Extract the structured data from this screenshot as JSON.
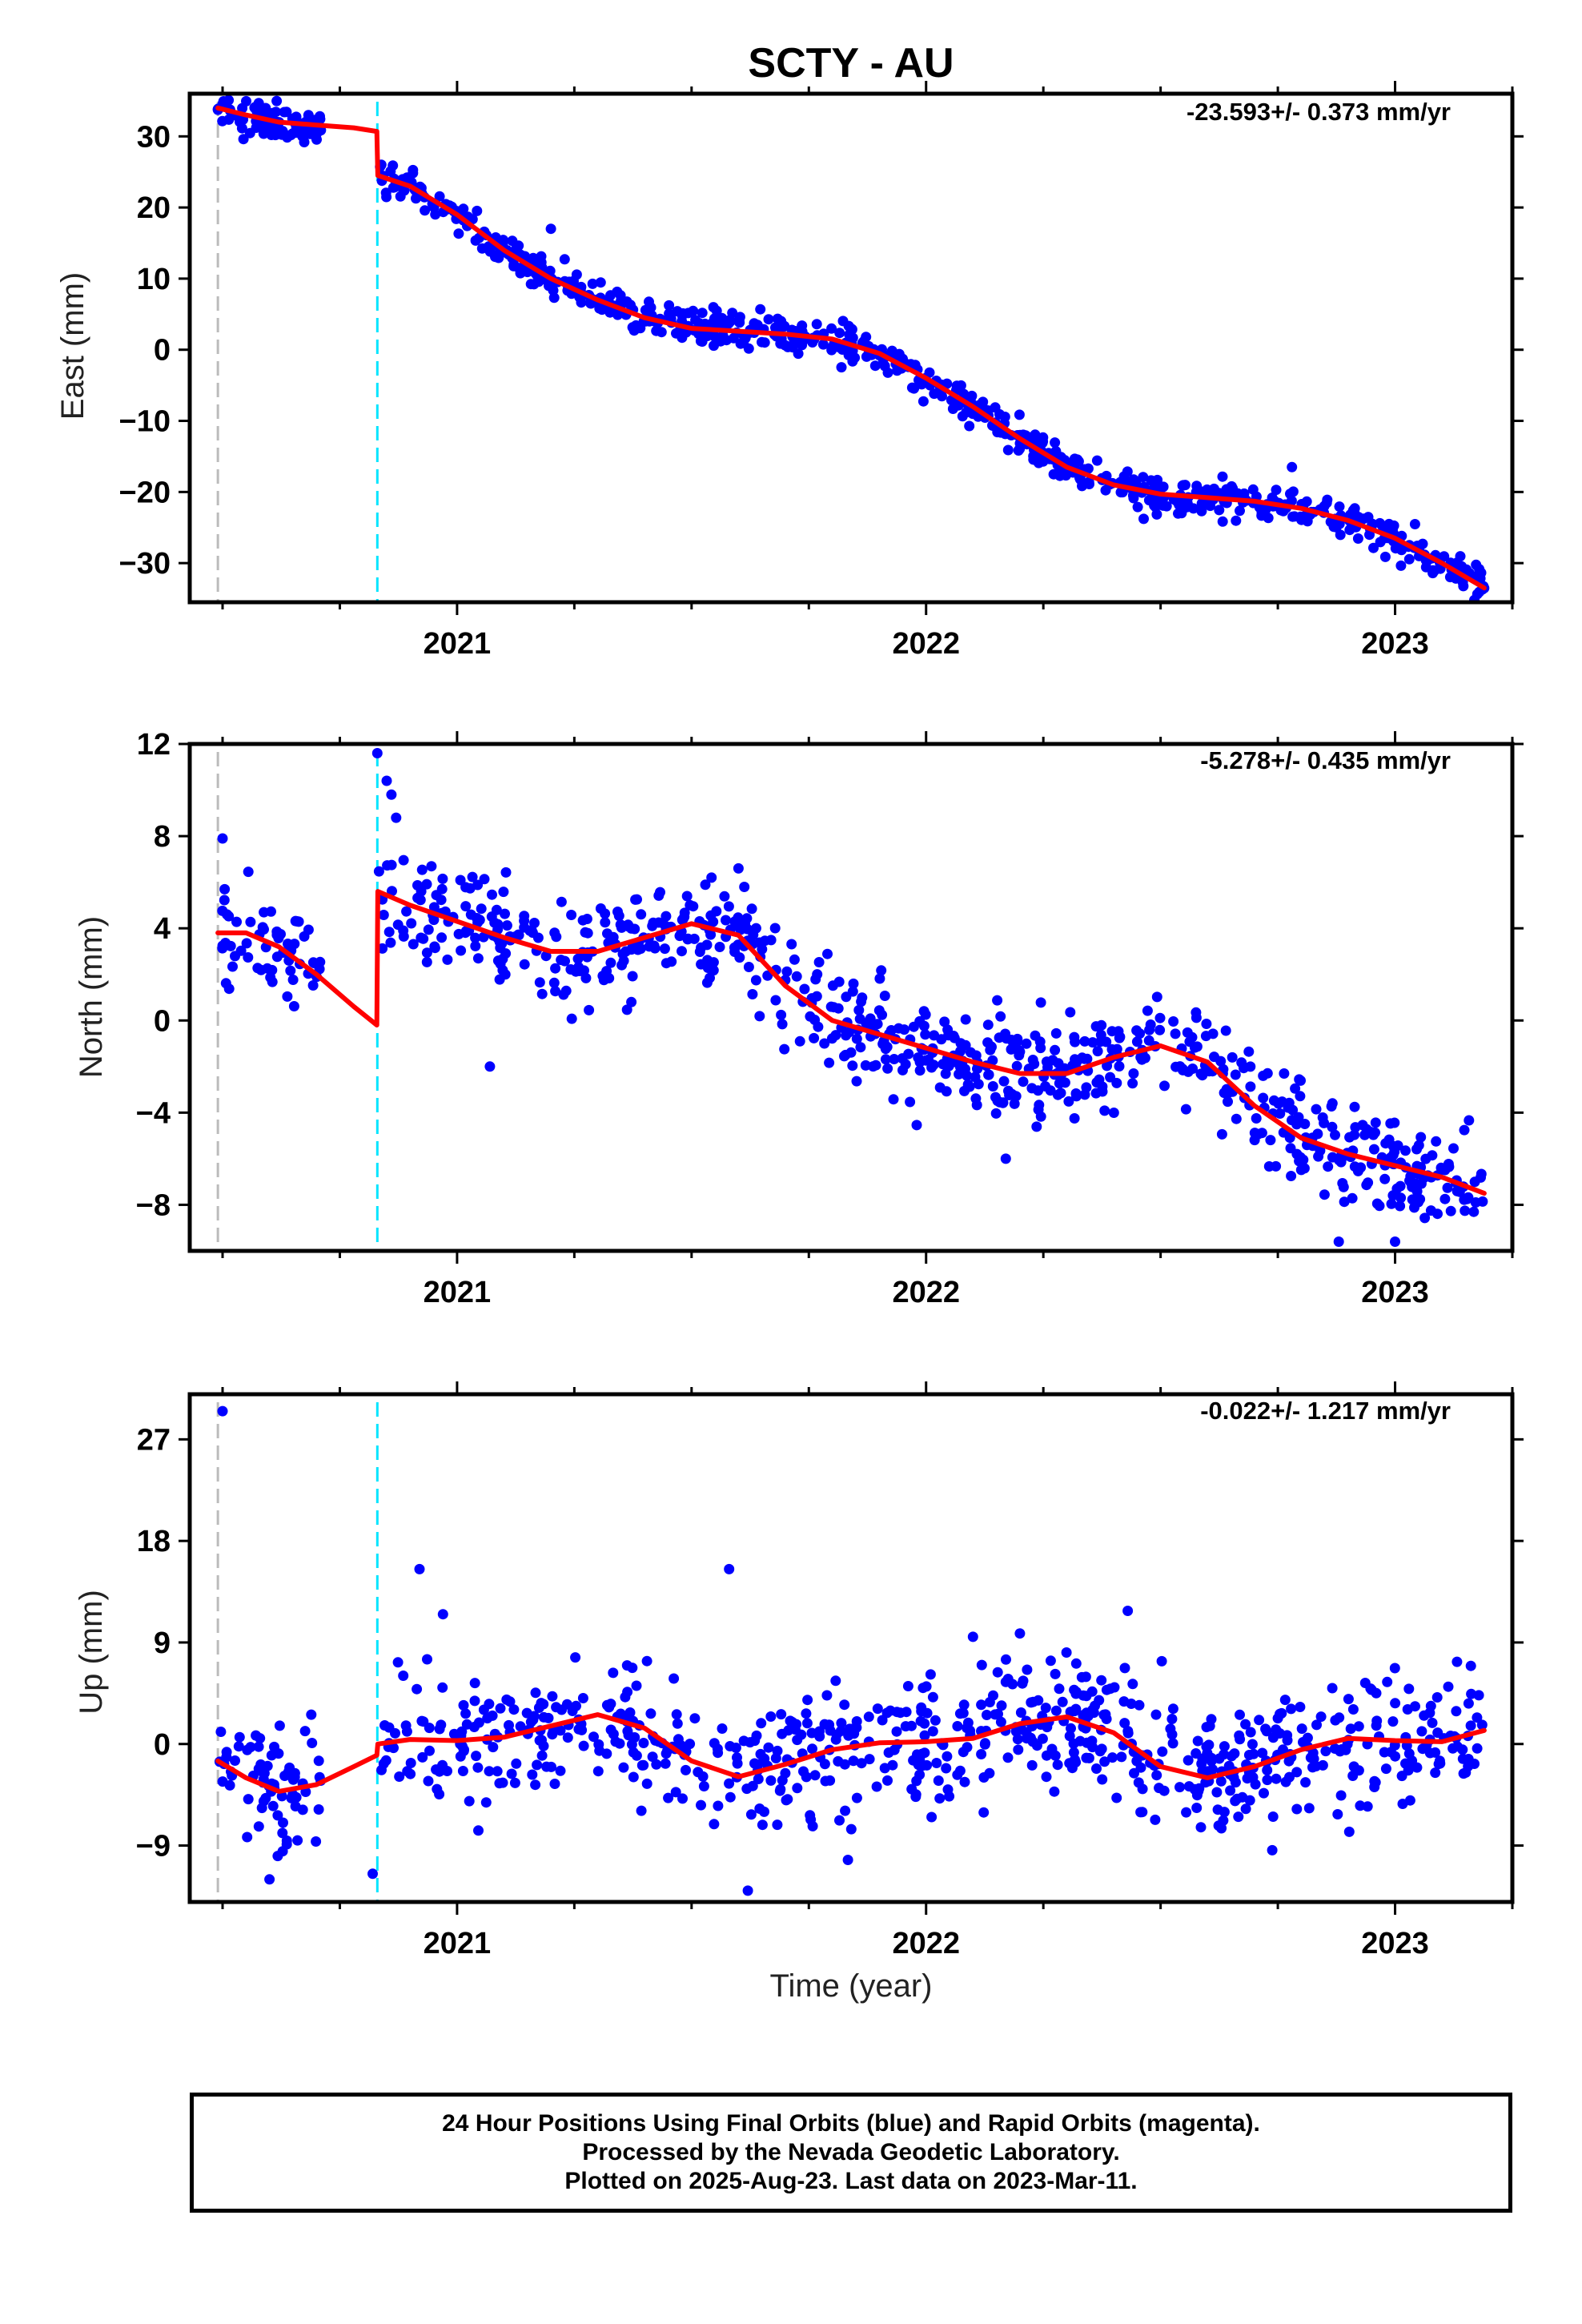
{
  "title": "SCTY - AU",
  "colors": {
    "data_points": "#0000ff",
    "model_line": "#ff0000",
    "equipment_change_line": "#00e5ff",
    "start_line": "#bbbbbb"
  },
  "xlabel": "Time (year)",
  "caption": {
    "line1": "24 Hour Positions Using Final Orbits (blue) and Rapid Orbits (magenta).",
    "line2": "Processed by the Nevada Geodetic Laboratory.",
    "line3": "Plotted on 2025-Aug-23. Last data on 2023-Mar-11."
  },
  "chart_data": [
    {
      "type": "scatter",
      "component": "east",
      "ylabel": "East (mm)",
      "rate_label": "-23.593+/- 0.373 mm/yr",
      "xlim": [
        2020.43,
        2023.25
      ],
      "ylim": [
        -35.5,
        36
      ],
      "xticks": [
        2021,
        2022,
        2023
      ],
      "xtick_labels": [
        "2021",
        "2022",
        "2023"
      ],
      "yticks": [
        30,
        20,
        10,
        0,
        -10,
        -20,
        -30
      ],
      "ytick_labels": [
        "30",
        "20",
        "10",
        "0",
        "−10",
        "−20",
        "−30"
      ],
      "vertical_lines": {
        "start": 2020.49,
        "equipment_change": 2020.83
      },
      "model_curve": {
        "x": [
          2020.49,
          2020.55,
          2020.62,
          2020.7,
          2020.78,
          2020.829,
          2020.831,
          2020.9,
          2021.0,
          2021.1,
          2021.2,
          2021.3,
          2021.4,
          2021.5,
          2021.6,
          2021.7,
          2021.8,
          2021.9,
          2022.0,
          2022.1,
          2022.2,
          2022.3,
          2022.4,
          2022.5,
          2022.6,
          2022.7,
          2022.8,
          2022.9,
          2023.0,
          2023.1,
          2023.19
        ],
        "y": [
          34,
          33,
          32,
          31.6,
          31.2,
          30.7,
          24.5,
          23,
          19,
          14,
          10,
          7,
          4.5,
          3,
          2.6,
          2.2,
          1.5,
          -0.5,
          -4,
          -8,
          -12.5,
          -16.5,
          -19,
          -20.3,
          -20.8,
          -21.3,
          -22.3,
          -24,
          -26.5,
          -30,
          -33.5
        ]
      },
      "points": {
        "n": 900,
        "noise_std": 1.2,
        "outliers": [
          [
            2021.0,
            18.5
          ],
          [
            2022.78,
            -16.5
          ],
          [
            2021.2,
            17.0
          ],
          [
            2022.2,
            -12.0
          ]
        ]
      }
    },
    {
      "type": "scatter",
      "component": "north",
      "ylabel": "North (mm)",
      "rate_label": "-5.278+/- 0.435 mm/yr",
      "xlim": [
        2020.43,
        2023.25
      ],
      "ylim": [
        -10,
        12
      ],
      "xticks": [
        2021,
        2022,
        2023
      ],
      "xtick_labels": [
        "2021",
        "2022",
        "2023"
      ],
      "yticks": [
        12,
        8,
        4,
        0,
        -4,
        -8
      ],
      "ytick_labels": [
        "12",
        "8",
        "4",
        "0",
        "−4",
        "−8"
      ],
      "vertical_lines": {
        "start": 2020.49,
        "equipment_change": 2020.83
      },
      "model_curve": {
        "x": [
          2020.49,
          2020.55,
          2020.62,
          2020.7,
          2020.78,
          2020.829,
          2020.831,
          2020.9,
          2021.0,
          2021.1,
          2021.2,
          2021.3,
          2021.4,
          2021.5,
          2021.6,
          2021.7,
          2021.8,
          2021.9,
          2022.0,
          2022.1,
          2022.2,
          2022.3,
          2022.4,
          2022.5,
          2022.6,
          2022.7,
          2022.8,
          2022.9,
          2023.0,
          2023.1,
          2023.19
        ],
        "y": [
          3.8,
          3.8,
          3.2,
          2,
          0.6,
          -0.2,
          5.6,
          5,
          4.3,
          3.6,
          3.0,
          3.0,
          3.6,
          4.2,
          3.7,
          1.5,
          0,
          -0.6,
          -1.2,
          -1.8,
          -2.3,
          -2.3,
          -1.6,
          -1.1,
          -1.8,
          -3.7,
          -5.1,
          -5.8,
          -6.3,
          -6.8,
          -7.5
        ]
      },
      "points": {
        "n": 850,
        "noise_std": 1.15,
        "outliers": [
          [
            2020.83,
            11.6
          ],
          [
            2020.85,
            10.4
          ],
          [
            2020.86,
            9.8
          ],
          [
            2020.87,
            8.8
          ],
          [
            2020.5,
            7.9
          ],
          [
            2021.07,
            -2.0
          ],
          [
            2022.17,
            -6.0
          ],
          [
            2022.88,
            -9.6
          ],
          [
            2023.0,
            -9.6
          ],
          [
            2021.6,
            6.6
          ]
        ]
      }
    },
    {
      "type": "scatter",
      "component": "up",
      "ylabel": "Up (mm)",
      "rate_label": "-0.022+/- 1.217 mm/yr",
      "xlim": [
        2020.43,
        2023.25
      ],
      "ylim": [
        -14,
        31
      ],
      "xticks": [
        2021,
        2022,
        2023
      ],
      "xtick_labels": [
        "2021",
        "2022",
        "2023"
      ],
      "yticks": [
        27,
        18,
        9,
        0,
        -9
      ],
      "ytick_labels": [
        "27",
        "18",
        "9",
        "0",
        "−9"
      ],
      "vertical_lines": {
        "start": 2020.49,
        "equipment_change": 2020.83
      },
      "model_curve": {
        "x": [
          2020.49,
          2020.55,
          2020.62,
          2020.7,
          2020.78,
          2020.829,
          2020.831,
          2020.9,
          2021.0,
          2021.1,
          2021.2,
          2021.3,
          2021.4,
          2021.5,
          2021.6,
          2021.7,
          2021.8,
          2021.9,
          2022.0,
          2022.1,
          2022.2,
          2022.3,
          2022.4,
          2022.5,
          2022.6,
          2022.7,
          2022.8,
          2022.9,
          2023.0,
          2023.1,
          2023.19
        ],
        "y": [
          -1.5,
          -3,
          -4.2,
          -3.6,
          -2.0,
          -1.0,
          0,
          0.4,
          0.3,
          0.6,
          1.6,
          2.6,
          1.4,
          -1.5,
          -2.9,
          -1.8,
          -0.5,
          0.1,
          0.2,
          0.5,
          1.8,
          2.4,
          1.0,
          -2.0,
          -3.0,
          -2.0,
          -0.5,
          0.5,
          0.3,
          0.2,
          1.2
        ]
      },
      "points": {
        "n": 850,
        "noise_std": 2.9,
        "outliers": [
          [
            2020.5,
            29.5
          ],
          [
            2020.92,
            15.5
          ],
          [
            2020.97,
            11.5
          ],
          [
            2021.58,
            15.5
          ],
          [
            2022.43,
            11.8
          ],
          [
            2020.82,
            -11.5
          ],
          [
            2020.6,
            -12.0
          ],
          [
            2021.62,
            -13.0
          ],
          [
            2022.1,
            9.5
          ],
          [
            2022.2,
            9.8
          ]
        ]
      }
    }
  ]
}
